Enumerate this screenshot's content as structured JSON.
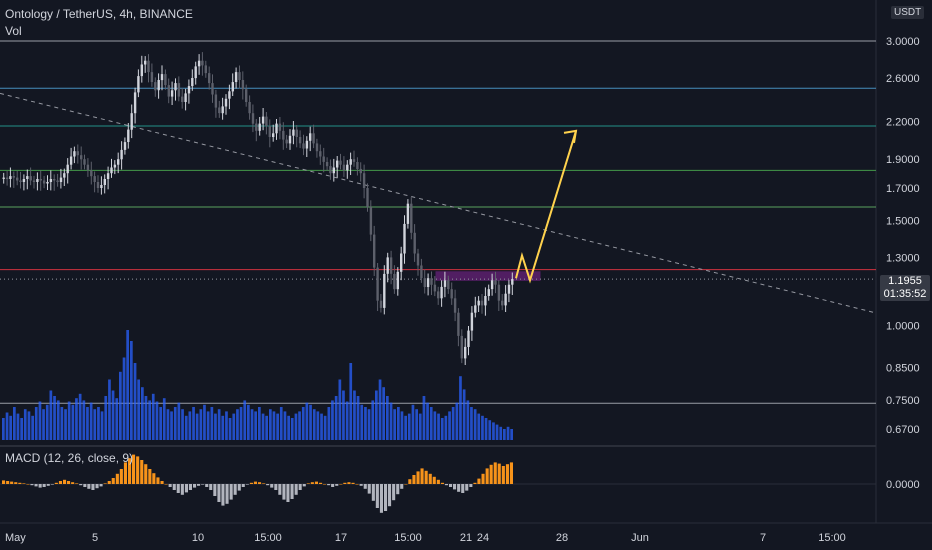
{
  "header": {
    "title": "Ontology / TetherUS, 4h, BINANCE",
    "vol_label": "Vol",
    "macd_label": "MACD (12, 26, close, 9)"
  },
  "price_axis": {
    "unit": "USDT",
    "current_price": "1.1955",
    "countdown": "01:35:52",
    "ticks": [
      "3.0000",
      "2.6000",
      "2.2000",
      "1.9000",
      "1.7000",
      "1.5000",
      "1.3000",
      "1.0000",
      "0.8500",
      "0.7500",
      "0.6700"
    ],
    "tick_values": [
      3.0,
      2.6,
      2.2,
      1.9,
      1.7,
      1.5,
      1.3,
      1.0,
      0.85,
      0.75,
      0.67
    ],
    "scale": "log"
  },
  "macd_axis": {
    "ticks": [
      "0.0000"
    ]
  },
  "time_axis": {
    "labels": [
      "May",
      "5",
      "10",
      "15:00",
      "17",
      "15:00",
      "21",
      "24",
      "28",
      "Jun",
      "7",
      "15:00"
    ]
  },
  "colors": {
    "background": "#131722",
    "up_candle": "#d1d4dc",
    "down_candle": "#5d606b",
    "volume": "#2962ff",
    "macd_positive": "#f7931a",
    "macd_negative": "#b2b5be",
    "projection": "#ffd24d",
    "zone": "#9c27b0",
    "red_level": "#f23645"
  },
  "chart_data": {
    "type": "candlestick",
    "symbol": "Ontology / TetherUS",
    "interval": "4h",
    "exchange": "BINANCE",
    "horizontal_levels": [
      {
        "price": 3.0,
        "color": "#b2b5be"
      },
      {
        "price": 2.5,
        "color": "#4fa3d9"
      },
      {
        "price": 2.16,
        "color": "#26a69a"
      },
      {
        "price": 1.82,
        "color": "#4caf50"
      },
      {
        "price": 1.58,
        "color": "#66bb6a"
      },
      {
        "price": 1.24,
        "color": "#f23645"
      },
      {
        "price": 0.74,
        "color": "#b2b5be"
      }
    ],
    "zone": {
      "top": 1.23,
      "bottom": 1.19
    },
    "trendline": [
      {
        "x": 0,
        "price": 2.45
      },
      {
        "x": 875,
        "price": 1.05
      }
    ],
    "projection_path": [
      1.2,
      1.31,
      1.19,
      2.12
    ],
    "candle_closes": [
      1.77,
      1.76,
      1.78,
      1.77,
      1.75,
      1.74,
      1.76,
      1.78,
      1.75,
      1.74,
      1.76,
      1.75,
      1.73,
      1.74,
      1.76,
      1.75,
      1.74,
      1.77,
      1.8,
      1.86,
      1.92,
      1.96,
      1.93,
      1.9,
      1.86,
      1.82,
      1.78,
      1.74,
      1.7,
      1.72,
      1.76,
      1.8,
      1.84,
      1.86,
      1.9,
      1.97,
      2.03,
      2.13,
      2.27,
      2.46,
      2.62,
      2.74,
      2.78,
      2.66,
      2.56,
      2.48,
      2.58,
      2.64,
      2.53,
      2.42,
      2.48,
      2.55,
      2.42,
      2.37,
      2.45,
      2.52,
      2.6,
      2.72,
      2.78,
      2.73,
      2.65,
      2.55,
      2.44,
      2.32,
      2.27,
      2.33,
      2.4,
      2.47,
      2.56,
      2.66,
      2.58,
      2.49,
      2.37,
      2.27,
      2.18,
      2.12,
      2.18,
      2.24,
      2.16,
      2.07,
      2.1,
      2.18,
      2.12,
      2.05,
      2.02,
      2.08,
      2.13,
      2.07,
      2.02,
      1.98,
      2.04,
      2.1,
      2.02,
      1.96,
      1.92,
      1.88,
      1.85,
      1.8,
      1.84,
      1.89,
      1.86,
      1.82,
      1.86,
      1.9,
      1.88,
      1.83,
      1.8,
      1.7,
      1.58,
      1.42,
      1.25,
      1.1,
      1.07,
      1.22,
      1.3,
      1.22,
      1.15,
      1.23,
      1.32,
      1.48,
      1.6,
      1.43,
      1.32,
      1.26,
      1.2,
      1.16,
      1.2,
      1.17,
      1.14,
      1.11,
      1.16,
      1.19,
      1.15,
      1.11,
      1.05,
      0.96,
      0.88,
      0.92,
      0.98,
      1.05,
      1.08,
      1.1,
      1.08,
      1.12,
      1.15,
      1.19,
      1.17,
      1.1,
      1.08,
      1.13,
      1.17,
      1.1955
    ],
    "volume_relative": [
      0.2,
      0.25,
      0.22,
      0.3,
      0.24,
      0.2,
      0.28,
      0.26,
      0.22,
      0.3,
      0.35,
      0.28,
      0.32,
      0.45,
      0.4,
      0.36,
      0.3,
      0.28,
      0.35,
      0.32,
      0.38,
      0.42,
      0.36,
      0.3,
      0.34,
      0.28,
      0.3,
      0.26,
      0.4,
      0.55,
      0.45,
      0.38,
      0.62,
      0.75,
      1.0,
      0.9,
      0.7,
      0.55,
      0.48,
      0.4,
      0.36,
      0.42,
      0.35,
      0.3,
      0.38,
      0.28,
      0.26,
      0.3,
      0.34,
      0.28,
      0.22,
      0.26,
      0.3,
      0.24,
      0.28,
      0.32,
      0.26,
      0.3,
      0.24,
      0.28,
      0.22,
      0.26,
      0.2,
      0.24,
      0.28,
      0.3,
      0.36,
      0.32,
      0.28,
      0.26,
      0.3,
      0.24,
      0.22,
      0.28,
      0.26,
      0.24,
      0.3,
      0.26,
      0.22,
      0.2,
      0.24,
      0.26,
      0.3,
      0.34,
      0.32,
      0.28,
      0.26,
      0.24,
      0.22,
      0.3,
      0.36,
      0.4,
      0.55,
      0.45,
      0.35,
      0.7,
      0.45,
      0.4,
      0.32,
      0.3,
      0.28,
      0.36,
      0.45,
      0.55,
      0.48,
      0.4,
      0.34,
      0.28,
      0.3,
      0.26,
      0.22,
      0.24,
      0.32,
      0.28,
      0.24,
      0.4,
      0.34,
      0.3,
      0.26,
      0.24,
      0.2,
      0.22,
      0.26,
      0.3,
      0.34,
      0.58,
      0.46,
      0.36,
      0.3,
      0.28,
      0.24,
      0.22,
      0.2,
      0.18,
      0.16,
      0.14,
      0.12,
      0.1,
      0.12,
      0.1
    ],
    "macd_histogram": [
      0.12,
      0.1,
      0.08,
      0.06,
      0.04,
      0.02,
      0.0,
      -0.04,
      -0.08,
      -0.12,
      -0.1,
      -0.06,
      -0.02,
      0.04,
      0.1,
      0.14,
      0.1,
      0.06,
      0.02,
      -0.04,
      -0.1,
      -0.16,
      -0.2,
      -0.14,
      -0.08,
      0.02,
      0.1,
      0.2,
      0.34,
      0.5,
      0.72,
      0.86,
      0.98,
      0.92,
      0.8,
      0.66,
      0.5,
      0.36,
      0.22,
      0.1,
      0.0,
      -0.1,
      -0.2,
      -0.3,
      -0.36,
      -0.28,
      -0.2,
      -0.12,
      -0.06,
      -0.02,
      -0.1,
      -0.2,
      -0.4,
      -0.6,
      -0.72,
      -0.66,
      -0.52,
      -0.36,
      -0.22,
      -0.1,
      -0.02,
      0.04,
      0.08,
      0.06,
      0.02,
      -0.04,
      -0.12,
      -0.2,
      -0.36,
      -0.52,
      -0.6,
      -0.5,
      -0.36,
      -0.2,
      -0.08,
      0.02,
      0.06,
      0.08,
      0.04,
      0.0,
      -0.04,
      -0.1,
      -0.06,
      0.0,
      0.04,
      0.06,
      0.04,
      0.0,
      -0.06,
      -0.16,
      -0.32,
      -0.56,
      -0.8,
      -0.96,
      -0.9,
      -0.74,
      -0.54,
      -0.34,
      -0.16,
      0.0,
      0.16,
      0.3,
      0.42,
      0.52,
      0.44,
      0.34,
      0.24,
      0.14,
      0.04,
      -0.04,
      -0.1,
      -0.18,
      -0.26,
      -0.3,
      -0.22,
      -0.1,
      0.04,
      0.18,
      0.34,
      0.52,
      0.64,
      0.72,
      0.68,
      0.6,
      0.66,
      0.72
    ]
  }
}
